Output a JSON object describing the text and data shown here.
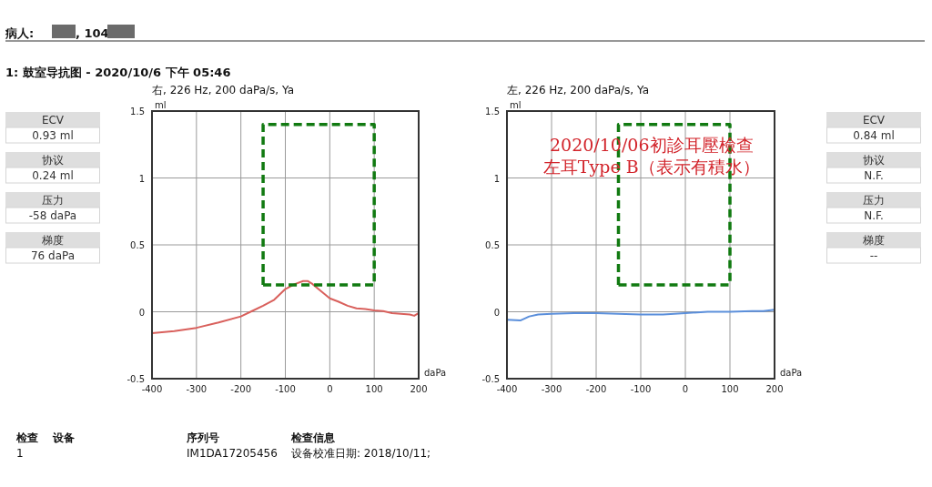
{
  "chart_data": [
    {
      "type": "other",
      "annotations": [
        "病人:",
        ", 104",
        "1: 鼓室导抗图 - 2020/10/6 下午 05:46"
      ]
    },
    {
      "type": "other",
      "annotations": [
        "ECV",
        "0.93 ml",
        "协议",
        "0.24 ml",
        "压力",
        "-58 daPa",
        "梯度",
        "76 daPa"
      ]
    },
    {
      "type": "line",
      "title": "右, 226 Hz, 200 daPa/s, Ya",
      "xlabel": "daPa",
      "ylabel": "ml",
      "xlim": [
        -400,
        200
      ],
      "ylim": [
        -0.5,
        1.5
      ],
      "xticks": [
        -400,
        -300,
        -200,
        -100,
        0,
        100,
        200
      ],
      "yticks": [
        -0.5,
        0,
        0.5,
        1,
        1.5
      ],
      "grid": true,
      "series": [
        {
          "color": "#d9605c",
          "x": [
            -400,
            -350,
            -300,
            -250,
            -200,
            -175,
            -150,
            -125,
            -100,
            -80,
            -60,
            -50,
            -40,
            -20,
            0,
            20,
            40,
            60,
            80,
            100,
            120,
            140,
            160,
            180,
            190,
            200
          ],
          "values": [
            -0.16,
            -0.145,
            -0.12,
            -0.08,
            -0.035,
            0.005,
            0.045,
            0.09,
            0.17,
            0.205,
            0.23,
            0.23,
            0.21,
            0.155,
            0.1,
            0.075,
            0.045,
            0.025,
            0.02,
            0.01,
            0.005,
            -0.01,
            -0.015,
            -0.02,
            -0.03,
            -0.01
          ]
        },
        {
          "color": "#117a11",
          "line_style": "dashed",
          "x": [
            -150,
            -150,
            100,
            100
          ],
          "values": [
            0.2,
            1.4,
            1.4,
            0.2
          ]
        },
        {
          "color": "#117a11",
          "line_style": "dashed",
          "x": [
            -150,
            100
          ],
          "values": [
            0.2,
            0.2
          ]
        }
      ]
    },
    {
      "type": "line",
      "title": "左, 226 Hz, 200 daPa/s, Ya",
      "xlabel": "daPa",
      "ylabel": "ml",
      "xlim": [
        -400,
        200
      ],
      "ylim": [
        -0.5,
        1.5
      ],
      "xticks": [
        -400,
        -300,
        -200,
        -100,
        0,
        100,
        200
      ],
      "yticks": [
        -0.5,
        0,
        0.5,
        1,
        1.5
      ],
      "grid": true,
      "annotations": [
        "2020/10/06初診耳壓檢查",
        "左耳Type B（表示有積水）"
      ],
      "series": [
        {
          "color": "#5b8fdb",
          "x": [
            -400,
            -370,
            -350,
            -330,
            -300,
            -250,
            -200,
            -150,
            -100,
            -50,
            0,
            50,
            100,
            150,
            175,
            200
          ],
          "values": [
            -0.06,
            -0.065,
            -0.035,
            -0.02,
            -0.015,
            -0.01,
            -0.01,
            -0.015,
            -0.02,
            -0.02,
            -0.01,
            0,
            0,
            0.005,
            0.005,
            0.015
          ]
        },
        {
          "color": "#117a11",
          "line_style": "dashed",
          "x": [
            -150,
            -150,
            100,
            100
          ],
          "values": [
            0.2,
            1.4,
            1.4,
            0.2
          ]
        },
        {
          "color": "#117a11",
          "line_style": "dashed",
          "x": [
            -150,
            100
          ],
          "values": [
            0.2,
            0.2
          ]
        }
      ]
    },
    {
      "type": "other",
      "annotations": [
        "ECV",
        "0.84 ml",
        "协议",
        "N.F.",
        "压力",
        "N.F.",
        "梯度",
        "--"
      ]
    },
    {
      "type": "other",
      "annotations": [
        "检查",
        "设备",
        "序列号",
        "检查信息",
        "1",
        "IM1DA17205456",
        "设备校准日期: 2018/10/11;"
      ]
    }
  ]
}
